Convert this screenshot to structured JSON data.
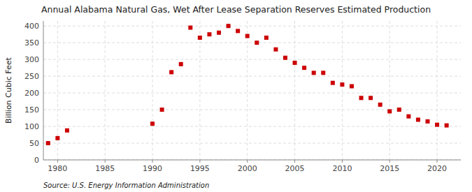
{
  "chart_data": {
    "type": "scatter",
    "title": "Annual Alabama Natural Gas, Wet After Lease Separation Reserves Estimated Production",
    "ylabel": "Billion Cubic Feet",
    "source": "Source: U.S. Energy Information Administration",
    "x": [
      1979,
      1980,
      1981,
      1990,
      1991,
      1992,
      1993,
      1994,
      1995,
      1996,
      1997,
      1998,
      1999,
      2000,
      2001,
      2002,
      2003,
      2004,
      2005,
      2006,
      2007,
      2008,
      2009,
      2010,
      2011,
      2012,
      2013,
      2014,
      2015,
      2016,
      2017,
      2018,
      2019,
      2020,
      2021
    ],
    "values": [
      50,
      65,
      88,
      108,
      150,
      262,
      286,
      395,
      365,
      375,
      380,
      400,
      385,
      370,
      350,
      365,
      330,
      305,
      290,
      275,
      260,
      260,
      230,
      225,
      220,
      185,
      185,
      165,
      145,
      150,
      130,
      120,
      115,
      105,
      103
    ],
    "color": "#cc0000",
    "marker": "square",
    "xlim": [
      1978.5,
      2022.5
    ],
    "ylim": [
      0,
      415
    ],
    "xticks": [
      1980,
      1985,
      1990,
      1995,
      2000,
      2005,
      2010,
      2015,
      2020
    ],
    "yticks": [
      0,
      50,
      100,
      150,
      200,
      250,
      300,
      350,
      400
    ],
    "grid": true
  }
}
